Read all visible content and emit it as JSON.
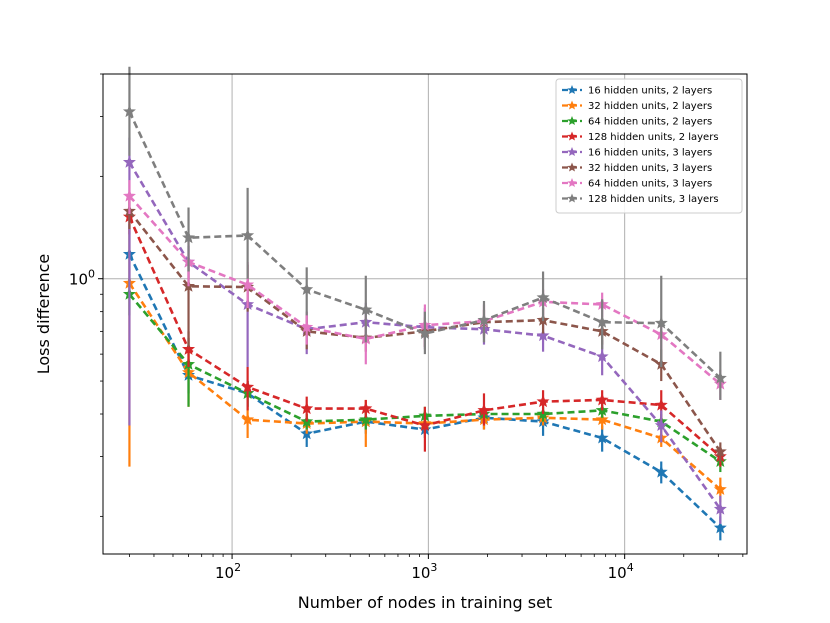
{
  "chart_data": {
    "type": "line",
    "title": "",
    "xlabel": "Number of nodes in training set",
    "ylabel": "Loss difference",
    "xscale": "log",
    "yscale": "log",
    "xlim": [
      22,
      42000
    ],
    "ylim": [
      0.155,
      4.0
    ],
    "grid": true,
    "legend_position": "top-right",
    "x_ticks": [
      {
        "value": 100,
        "base": "10",
        "exp": "2"
      },
      {
        "value": 1000,
        "base": "10",
        "exp": "3"
      },
      {
        "value": 10000,
        "base": "10",
        "exp": "4"
      }
    ],
    "y_ticks": [
      {
        "value": 1,
        "base": "10",
        "exp": "0"
      }
    ],
    "x": [
      30,
      60,
      120,
      240,
      480,
      960,
      1920,
      3840,
      7680,
      15360,
      30720
    ],
    "series": [
      {
        "name": "16 hidden units, 2 layers",
        "color": "#1f77b4",
        "values": [
          1.18,
          0.52,
          0.46,
          0.35,
          0.38,
          0.36,
          0.39,
          0.38,
          0.34,
          0.27,
          0.185
        ],
        "lower": [
          0.9,
          0.46,
          0.42,
          0.32,
          0.35,
          0.34,
          0.36,
          0.345,
          0.31,
          0.25,
          0.17
        ],
        "upper": [
          1.45,
          0.58,
          0.5,
          0.38,
          0.41,
          0.39,
          0.42,
          0.41,
          0.37,
          0.29,
          0.2
        ]
      },
      {
        "name": "32 hidden units, 2 layers",
        "color": "#ff7f0e",
        "values": [
          0.97,
          0.53,
          0.385,
          0.375,
          0.38,
          0.375,
          0.385,
          0.39,
          0.385,
          0.34,
          0.24
        ],
        "lower": [
          0.28,
          0.42,
          0.34,
          0.35,
          0.32,
          0.35,
          0.36,
          0.37,
          0.36,
          0.32,
          0.22
        ],
        "upper": [
          1.4,
          0.63,
          0.42,
          0.4,
          0.44,
          0.4,
          0.41,
          0.41,
          0.41,
          0.36,
          0.26
        ]
      },
      {
        "name": "64 hidden units, 2 layers",
        "color": "#2ca02c",
        "values": [
          0.9,
          0.56,
          0.46,
          0.38,
          0.385,
          0.395,
          0.4,
          0.4,
          0.41,
          0.38,
          0.29
        ],
        "lower": [
          0.78,
          0.42,
          0.42,
          0.36,
          0.36,
          0.37,
          0.38,
          0.38,
          0.39,
          0.36,
          0.27
        ],
        "upper": [
          1.0,
          0.67,
          0.5,
          0.4,
          0.41,
          0.42,
          0.42,
          0.42,
          0.43,
          0.4,
          0.31
        ]
      },
      {
        "name": "128 hidden units, 2 layers",
        "color": "#d62728",
        "values": [
          1.52,
          0.62,
          0.48,
          0.415,
          0.415,
          0.37,
          0.41,
          0.435,
          0.44,
          0.425,
          0.3
        ],
        "lower": [
          1.35,
          0.55,
          0.41,
          0.38,
          0.39,
          0.31,
          0.37,
          0.4,
          0.41,
          0.38,
          0.28
        ],
        "upper": [
          1.7,
          0.7,
          0.55,
          0.45,
          0.44,
          0.42,
          0.46,
          0.47,
          0.47,
          0.47,
          0.32
        ]
      },
      {
        "name": "16 hidden units, 3 layers",
        "color": "#9467bd",
        "values": [
          2.2,
          1.12,
          0.84,
          0.71,
          0.745,
          0.72,
          0.71,
          0.68,
          0.59,
          0.37,
          0.21
        ],
        "lower": [
          0.37,
          1.0,
          0.55,
          0.6,
          0.65,
          0.62,
          0.64,
          0.61,
          0.52,
          0.33,
          0.19
        ],
        "upper": [
          2.6,
          1.25,
          1.0,
          0.8,
          0.85,
          0.82,
          0.78,
          0.75,
          0.66,
          0.41,
          0.23
        ]
      },
      {
        "name": "32 hidden units, 3 layers",
        "color": "#8c564b",
        "values": [
          1.58,
          0.95,
          0.945,
          0.7,
          0.67,
          0.7,
          0.745,
          0.755,
          0.7,
          0.56,
          0.31
        ],
        "lower": [
          1.4,
          0.63,
          0.8,
          0.62,
          0.61,
          0.63,
          0.68,
          0.69,
          0.64,
          0.5,
          0.29
        ],
        "upper": [
          1.76,
          1.1,
          1.1,
          0.78,
          0.74,
          0.77,
          0.81,
          0.82,
          0.76,
          0.62,
          0.33
        ]
      },
      {
        "name": "64 hidden units, 3 layers",
        "color": "#e377c2",
        "values": [
          1.75,
          1.12,
          0.96,
          0.72,
          0.665,
          0.73,
          0.75,
          0.855,
          0.84,
          0.685,
          0.49
        ],
        "lower": [
          1.55,
          0.95,
          0.82,
          0.64,
          0.56,
          0.63,
          0.67,
          0.78,
          0.77,
          0.62,
          0.44
        ],
        "upper": [
          1.95,
          1.3,
          1.12,
          0.8,
          0.78,
          0.84,
          0.84,
          0.93,
          0.91,
          0.75,
          0.54
        ]
      },
      {
        "name": "128 hidden units, 3 layers",
        "color": "#7f7f7f",
        "values": [
          3.1,
          1.32,
          1.34,
          0.93,
          0.81,
          0.69,
          0.755,
          0.88,
          0.745,
          0.74,
          0.51
        ],
        "lower": [
          2.3,
          1.05,
          1.0,
          0.78,
          0.65,
          0.6,
          0.65,
          0.75,
          0.62,
          0.55,
          0.44
        ],
        "upper": [
          4.2,
          1.62,
          1.85,
          1.08,
          1.02,
          0.8,
          0.86,
          1.05,
          0.87,
          1.02,
          0.61
        ]
      }
    ]
  }
}
